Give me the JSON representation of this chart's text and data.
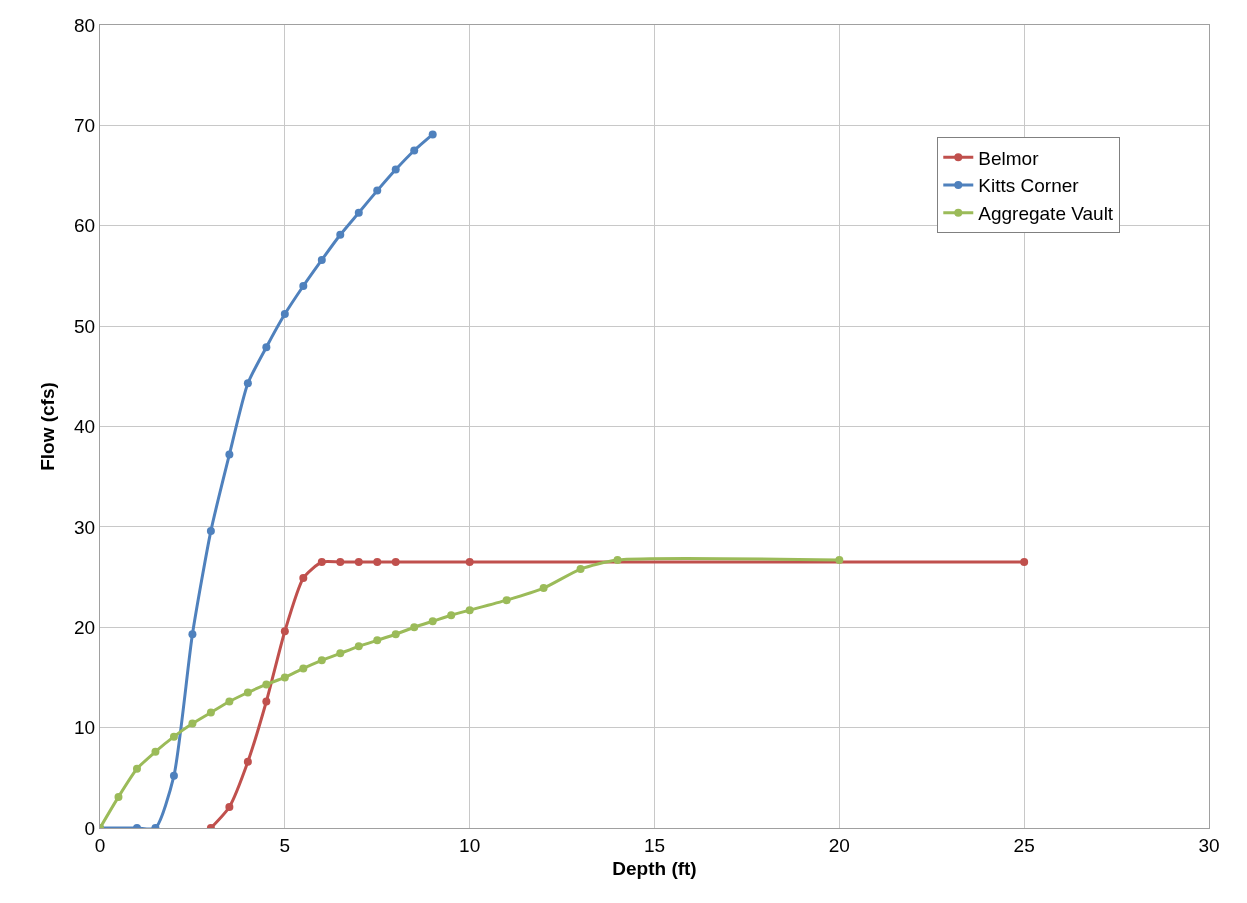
{
  "chart_data": {
    "type": "line",
    "xlabel": "Depth (ft)",
    "ylabel": "Flow (cfs)",
    "xlim": [
      0,
      30
    ],
    "xticks": [
      0,
      5,
      10,
      15,
      20,
      25,
      30
    ],
    "ylim": [
      0,
      80
    ],
    "yticks": [
      0,
      10,
      20,
      30,
      40,
      50,
      60,
      70,
      80
    ],
    "grid": true,
    "legend": "top right",
    "marker": "circle",
    "line_style": "solid",
    "series": [
      {
        "name": "Belmor",
        "color": "#c0504d",
        "x": [
          3,
          3.5,
          4,
          4.5,
          5,
          5.5,
          6,
          6.5,
          7,
          7.5,
          8,
          10,
          25
        ],
        "values": [
          0,
          2.1,
          6.6,
          12.6,
          19.6,
          24.9,
          26.5,
          26.5,
          26.5,
          26.5,
          26.5,
          26.5,
          26.5
        ]
      },
      {
        "name": "Kitts Corner",
        "color": "#4f81bd",
        "x": [
          0,
          1,
          1.5,
          2,
          2.5,
          3,
          3.5,
          4,
          4.5,
          5,
          5.5,
          6,
          6.5,
          7,
          7.5,
          8,
          8.5,
          9
        ],
        "values": [
          0,
          0,
          0,
          5.2,
          19.3,
          29.6,
          37.2,
          44.3,
          47.9,
          51.2,
          54.0,
          56.6,
          59.1,
          61.3,
          63.5,
          65.6,
          67.5,
          69.1
        ]
      },
      {
        "name": "Aggregate Vault",
        "color": "#9bbb59",
        "x": [
          0,
          0.5,
          1,
          1.5,
          2,
          2.5,
          3,
          3.5,
          4,
          4.5,
          5,
          5.5,
          6,
          6.5,
          7,
          7.5,
          8,
          8.5,
          9,
          9.5,
          10,
          11,
          12,
          13,
          14,
          20
        ],
        "values": [
          0,
          3.1,
          5.9,
          7.6,
          9.1,
          10.4,
          11.5,
          12.6,
          13.5,
          14.3,
          15.0,
          15.9,
          16.7,
          17.4,
          18.1,
          18.7,
          19.3,
          20.0,
          20.6,
          21.2,
          21.7,
          22.7,
          23.9,
          25.8,
          26.7,
          26.7
        ]
      }
    ]
  }
}
